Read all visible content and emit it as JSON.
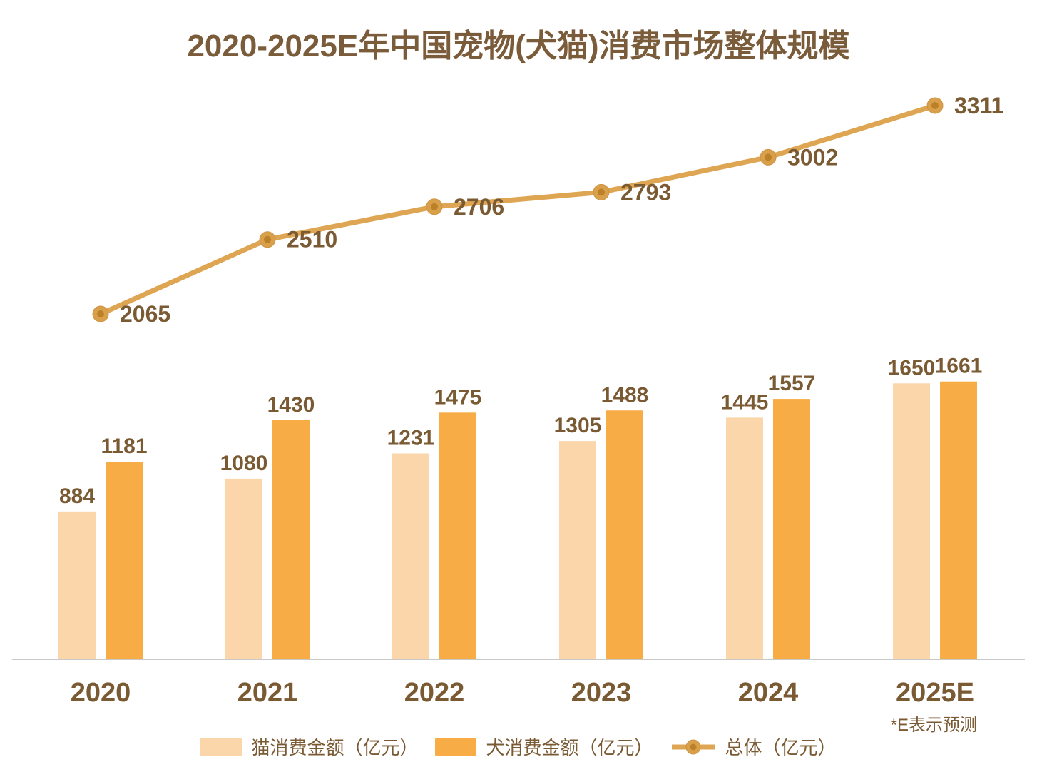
{
  "title": "2020-2025E年中国宠物(犬猫)消费市场整体规模",
  "footnote": "*E表示预测",
  "legend": [
    {
      "label": "猫消费金额（亿元）",
      "type": "swatch",
      "color_key": "cat"
    },
    {
      "label": "犬消费金额（亿元）",
      "type": "swatch",
      "color_key": "dog"
    },
    {
      "label": "总体（亿元）",
      "type": "line",
      "color_key": "line"
    }
  ],
  "colors": {
    "cat": "#FBD6AA",
    "dog": "#F8AC45",
    "line": "#DEA553",
    "marker_outer": "#D9A04B",
    "marker_inner": "#BC8028",
    "text": "#7A5A33",
    "axis": "#C9C9C9"
  },
  "chart_data": {
    "type": "bar+line",
    "title": "2020-2025E年中国宠物(犬猫)消费市场整体规模",
    "categories": [
      "2020",
      "2021",
      "2022",
      "2023",
      "2024",
      "2025E"
    ],
    "series": [
      {
        "name": "猫消费金额（亿元）",
        "type": "bar",
        "values": [
          884,
          1080,
          1231,
          1305,
          1445,
          1650
        ]
      },
      {
        "name": "犬消费金额（亿元）",
        "type": "bar",
        "values": [
          1181,
          1430,
          1475,
          1488,
          1557,
          1661
        ]
      },
      {
        "name": "总体（亿元）",
        "type": "line",
        "values": [
          2065,
          2510,
          2706,
          2793,
          3002,
          3311
        ]
      }
    ],
    "ylim": [
      0,
      3500
    ],
    "grid": false,
    "legend_position": "bottom",
    "annotation": "*E表示预测"
  }
}
